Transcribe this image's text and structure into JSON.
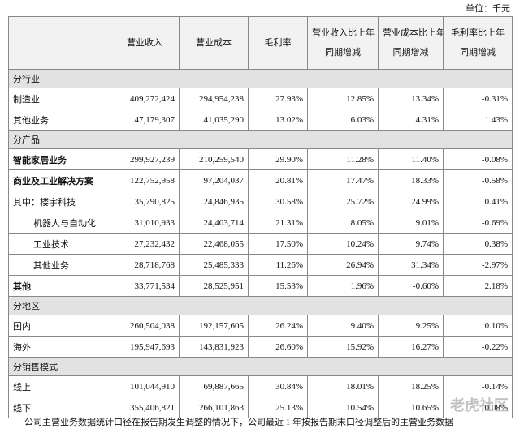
{
  "unit": "单位：千元",
  "table": {
    "header": [
      "营业收入",
      "营业成本",
      "毛利率",
      [
        "营业收入比上年",
        "同期增减"
      ],
      [
        "营业成本比上年",
        "同期增减"
      ],
      [
        "毛利率比上年",
        "同期增减"
      ]
    ],
    "rows": [
      {
        "section": "分行业"
      },
      {
        "cells": [
          "制造业",
          "409,272,424",
          "294,954,238",
          "27.93%",
          "12.85%",
          "13.34%",
          "-0.31%"
        ]
      },
      {
        "cells": [
          "其他业务",
          "47,179,307",
          "41,035,290",
          "13.02%",
          "6.03%",
          "4.31%",
          "1.43%"
        ]
      },
      {
        "section": "分产品"
      },
      {
        "cells": [
          "智能家居业务",
          "299,927,239",
          "210,259,540",
          "29.90%",
          "11.28%",
          "11.40%",
          "-0.08%"
        ],
        "bold": true
      },
      {
        "cells": [
          "商业及工业解决方案",
          "122,752,958",
          "97,204,037",
          "20.81%",
          "17.47%",
          "18.33%",
          "-0.58%"
        ],
        "bold": true
      },
      {
        "cells": [
          "其中：楼宇科技",
          "35,790,825",
          "24,846,935",
          "30.58%",
          "25.72%",
          "24.99%",
          "0.41%"
        ]
      },
      {
        "cells": [
          "机器人与自动化",
          "31,010,933",
          "24,403,714",
          "21.31%",
          "8.05%",
          "9.01%",
          "-0.69%"
        ],
        "level": 1
      },
      {
        "cells": [
          "工业技术",
          "27,232,432",
          "22,468,055",
          "17.50%",
          "10.24%",
          "9.74%",
          "0.38%"
        ],
        "level": 1
      },
      {
        "cells": [
          "其他业务",
          "28,718,768",
          "25,485,333",
          "11.26%",
          "26.94%",
          "31.34%",
          "-2.97%"
        ],
        "level": 1
      },
      {
        "cells": [
          "其他",
          "33,771,534",
          "28,525,951",
          "15.53%",
          "1.96%",
          "-0.60%",
          "2.18%"
        ],
        "bold": true
      },
      {
        "section": "分地区"
      },
      {
        "cells": [
          "国内",
          "260,504,038",
          "192,157,605",
          "26.24%",
          "9.40%",
          "9.25%",
          "0.10%"
        ]
      },
      {
        "cells": [
          "海外",
          "195,947,693",
          "143,831,923",
          "26.60%",
          "15.92%",
          "16.27%",
          "-0.22%"
        ]
      },
      {
        "section": "分销售模式"
      },
      {
        "cells": [
          "线上",
          "101,044,910",
          "69,887,665",
          "30.84%",
          "18.01%",
          "18.25%",
          "-0.14%"
        ]
      },
      {
        "cells": [
          "线下",
          "355,406,821",
          "266,101,863",
          "25.13%",
          "10.54%",
          "10.65%",
          "0.08%"
        ]
      }
    ]
  },
  "footer": "公司主营业务数据统计口径在报告期发生调整的情况下，公司最近 1 年按报告期末口径调整后的主营业务数据",
  "watermark": "老虎社区"
}
